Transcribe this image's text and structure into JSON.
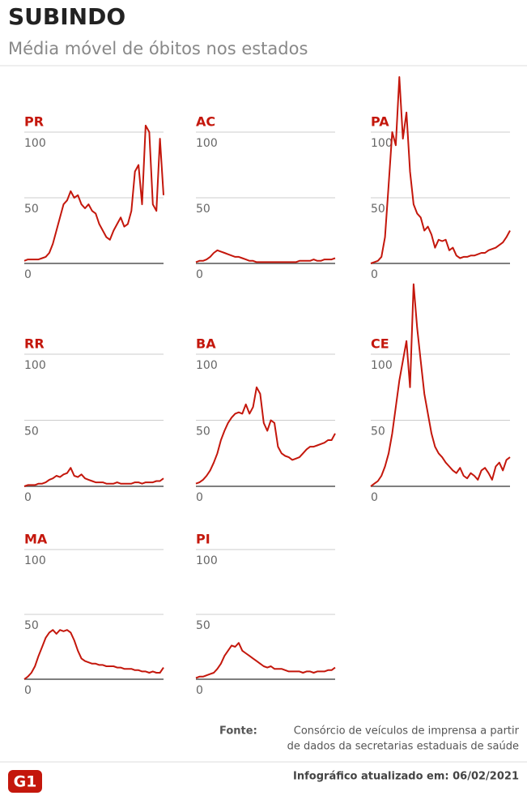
{
  "title": "SUBINDO",
  "subtitle": "Média móvel de óbitos nos estados",
  "source_label": "Fonte:",
  "source_lines": [
    "Consórcio de veículos de imprensa a partir",
    "de dados da secretarias estaduais de saúde"
  ],
  "updated": "Infográfico atualizado em: 06/02/2021",
  "logo": "G1",
  "chart_data": [
    {
      "type": "line",
      "title": "PR",
      "color": "#c4170c",
      "ylim": [
        0,
        100
      ],
      "yticks": [
        0,
        50,
        100
      ],
      "values": [
        2,
        3,
        3,
        3,
        3,
        4,
        5,
        8,
        15,
        25,
        35,
        45,
        48,
        55,
        50,
        52,
        45,
        42,
        45,
        40,
        38,
        30,
        25,
        20,
        18,
        25,
        30,
        35,
        28,
        30,
        40,
        70,
        75,
        45,
        105,
        100,
        45,
        40,
        95,
        52
      ]
    },
    {
      "type": "line",
      "title": "AC",
      "color": "#c4170c",
      "ylim": [
        0,
        100
      ],
      "yticks": [
        0,
        50,
        100
      ],
      "values": [
        1,
        2,
        2,
        3,
        5,
        8,
        10,
        9,
        8,
        7,
        6,
        5,
        5,
        4,
        3,
        2,
        2,
        1,
        1,
        1,
        1,
        1,
        1,
        1,
        1,
        1,
        1,
        1,
        1,
        2,
        2,
        2,
        2,
        3,
        2,
        2,
        3,
        3,
        3,
        4
      ]
    },
    {
      "type": "line",
      "title": "PA",
      "color": "#c4170c",
      "ylim": [
        0,
        100
      ],
      "yticks": [
        0,
        50,
        100
      ],
      "values": [
        0,
        1,
        2,
        5,
        20,
        60,
        100,
        90,
        142,
        95,
        115,
        70,
        45,
        38,
        35,
        25,
        28,
        22,
        12,
        18,
        17,
        18,
        10,
        12,
        6,
        4,
        5,
        5,
        6,
        6,
        7,
        8,
        8,
        10,
        11,
        12,
        14,
        16,
        20,
        25
      ]
    },
    {
      "type": "line",
      "title": "RR",
      "color": "#c4170c",
      "ylim": [
        0,
        100
      ],
      "yticks": [
        0,
        50,
        100
      ],
      "values": [
        0,
        1,
        1,
        1,
        2,
        2,
        3,
        5,
        6,
        8,
        7,
        9,
        10,
        14,
        8,
        7,
        9,
        6,
        5,
        4,
        3,
        3,
        3,
        2,
        2,
        2,
        3,
        2,
        2,
        2,
        2,
        3,
        3,
        2,
        3,
        3,
        3,
        4,
        4,
        6
      ]
    },
    {
      "type": "line",
      "title": "BA",
      "color": "#c4170c",
      "ylim": [
        0,
        100
      ],
      "yticks": [
        0,
        50,
        100
      ],
      "values": [
        2,
        3,
        5,
        8,
        12,
        18,
        25,
        35,
        42,
        48,
        52,
        55,
        56,
        55,
        62,
        55,
        60,
        75,
        70,
        48,
        42,
        50,
        48,
        30,
        25,
        23,
        22,
        20,
        21,
        22,
        25,
        28,
        30,
        30,
        31,
        32,
        33,
        35,
        35,
        40
      ]
    },
    {
      "type": "line",
      "title": "CE",
      "color": "#c4170c",
      "ylim": [
        0,
        100
      ],
      "yticks": [
        0,
        50,
        100
      ],
      "values": [
        0,
        2,
        4,
        8,
        15,
        25,
        40,
        60,
        80,
        95,
        110,
        75,
        153,
        120,
        95,
        70,
        55,
        40,
        30,
        25,
        22,
        18,
        15,
        12,
        10,
        14,
        8,
        6,
        10,
        8,
        5,
        12,
        14,
        10,
        5,
        15,
        18,
        12,
        20,
        22
      ]
    },
    {
      "type": "line",
      "title": "MA",
      "color": "#c4170c",
      "ylim": [
        0,
        100
      ],
      "yticks": [
        0,
        50,
        100
      ],
      "values": [
        0,
        2,
        5,
        10,
        18,
        25,
        32,
        36,
        38,
        35,
        38,
        37,
        38,
        36,
        30,
        22,
        16,
        14,
        13,
        12,
        12,
        11,
        11,
        10,
        10,
        10,
        9,
        9,
        8,
        8,
        8,
        7,
        7,
        6,
        6,
        5,
        6,
        5,
        5,
        9
      ]
    },
    {
      "type": "line",
      "title": "PI",
      "color": "#c4170c",
      "ylim": [
        0,
        100
      ],
      "yticks": [
        0,
        50,
        100
      ],
      "values": [
        1,
        2,
        2,
        3,
        4,
        5,
        8,
        12,
        18,
        22,
        26,
        25,
        28,
        22,
        20,
        18,
        16,
        14,
        12,
        10,
        9,
        10,
        8,
        8,
        8,
        7,
        6,
        6,
        6,
        6,
        5,
        6,
        6,
        5,
        6,
        6,
        6,
        7,
        7,
        9
      ]
    }
  ]
}
